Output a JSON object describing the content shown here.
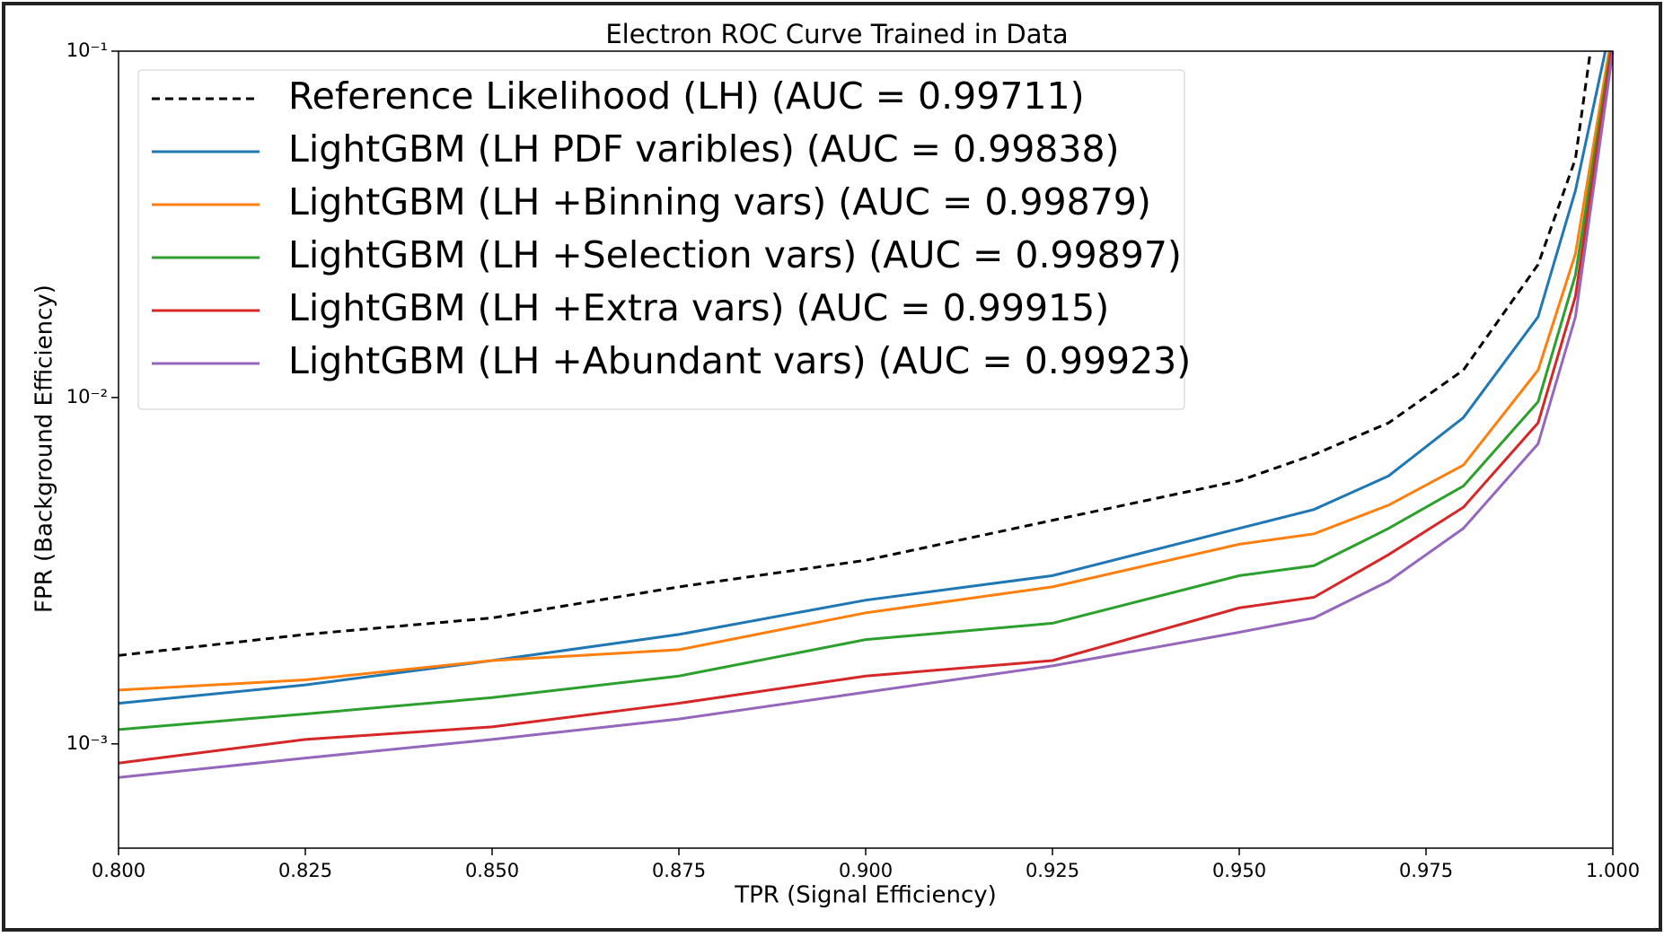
{
  "chart_data": {
    "type": "line",
    "title": "Electron ROC Curve Trained in Data",
    "xlabel": "TPR (Signal Efficiency)",
    "ylabel": "FPR (Background Efficiency)",
    "xlim": [
      0.8,
      1.0
    ],
    "ylim": [
      0.0005,
      0.1
    ],
    "yscale": "log",
    "xticks": [
      {
        "value": 0.8,
        "label": "0.800"
      },
      {
        "value": 0.825,
        "label": "0.825"
      },
      {
        "value": 0.85,
        "label": "0.850"
      },
      {
        "value": 0.875,
        "label": "0.875"
      },
      {
        "value": 0.9,
        "label": "0.900"
      },
      {
        "value": 0.925,
        "label": "0.925"
      },
      {
        "value": 0.95,
        "label": "0.950"
      },
      {
        "value": 0.975,
        "label": "0.975"
      },
      {
        "value": 1.0,
        "label": "1.000"
      }
    ],
    "yticks": [
      {
        "value": 0.001,
        "label": "10⁻³"
      },
      {
        "value": 0.01,
        "label": "10⁻²"
      },
      {
        "value": 0.1,
        "label": "10⁻¹"
      }
    ],
    "legend": "upper left",
    "series": [
      {
        "name": "Reference Likelihood (LH) (AUC = 0.99711)",
        "color": "#000000",
        "linestyle": "dashed",
        "x": [
          0.8,
          0.825,
          0.85,
          0.875,
          0.9,
          0.925,
          0.95,
          0.96,
          0.97,
          0.98,
          0.99,
          0.995,
          0.997
        ],
        "values": [
          0.0018,
          0.00207,
          0.00231,
          0.00284,
          0.00339,
          0.00442,
          0.00575,
          0.00684,
          0.00845,
          0.012,
          0.0242,
          0.0489,
          0.1
        ]
      },
      {
        "name": "LightGBM (LH PDF varibles) (AUC = 0.99838)",
        "color": "#1f77b4",
        "linestyle": "solid",
        "x": [
          0.8,
          0.825,
          0.85,
          0.875,
          0.9,
          0.925,
          0.95,
          0.96,
          0.97,
          0.98,
          0.99,
          0.995,
          0.999
        ],
        "values": [
          0.00131,
          0.00148,
          0.00174,
          0.00207,
          0.0026,
          0.00306,
          0.00419,
          0.00475,
          0.00594,
          0.00875,
          0.0171,
          0.0396,
          0.1
        ]
      },
      {
        "name": "LightGBM (LH +Binning vars) (AUC = 0.99879)",
        "color": "#ff7f0e",
        "linestyle": "solid",
        "x": [
          0.8,
          0.825,
          0.85,
          0.875,
          0.9,
          0.925,
          0.95,
          0.96,
          0.97,
          0.98,
          0.99,
          0.995,
          0.9995
        ],
        "values": [
          0.00143,
          0.00153,
          0.00174,
          0.00187,
          0.00239,
          0.00284,
          0.00377,
          0.00404,
          0.00489,
          0.00638,
          0.012,
          0.026,
          0.1
        ]
      },
      {
        "name": "LightGBM (LH +Selection vars) (AUC = 0.99897)",
        "color": "#2ca02c",
        "linestyle": "solid",
        "x": [
          0.8,
          0.825,
          0.85,
          0.875,
          0.9,
          0.925,
          0.95,
          0.96,
          0.97,
          0.98,
          0.99,
          0.995,
          0.9997
        ],
        "values": [
          0.0011,
          0.00122,
          0.00136,
          0.00157,
          0.002,
          0.00223,
          0.00306,
          0.00327,
          0.00419,
          0.00555,
          0.00972,
          0.0226,
          0.1
        ]
      },
      {
        "name": "LightGBM (LH +Extra vars) (AUC = 0.99915)",
        "color": "#d62728",
        "linestyle": "solid",
        "x": [
          0.8,
          0.825,
          0.85,
          0.875,
          0.9,
          0.925,
          0.95,
          0.96,
          0.97,
          0.98,
          0.99,
          0.995,
          0.9998
        ],
        "values": [
          0.00088,
          0.00103,
          0.00112,
          0.00131,
          0.00157,
          0.00174,
          0.00247,
          0.00265,
          0.00352,
          0.00482,
          0.00845,
          0.0196,
          0.1
        ]
      },
      {
        "name": "LightGBM (LH +Abundant vars) (AUC = 0.99923)",
        "color": "#9467bd",
        "linestyle": "solid",
        "x": [
          0.8,
          0.825,
          0.85,
          0.875,
          0.9,
          0.925,
          0.95,
          0.96,
          0.97,
          0.98,
          0.99,
          0.995,
          1.0
        ],
        "values": [
          0.0008,
          0.00091,
          0.00103,
          0.00118,
          0.00141,
          0.00168,
          0.0021,
          0.00231,
          0.00295,
          0.00419,
          0.00735,
          0.0171,
          0.1
        ]
      }
    ]
  }
}
